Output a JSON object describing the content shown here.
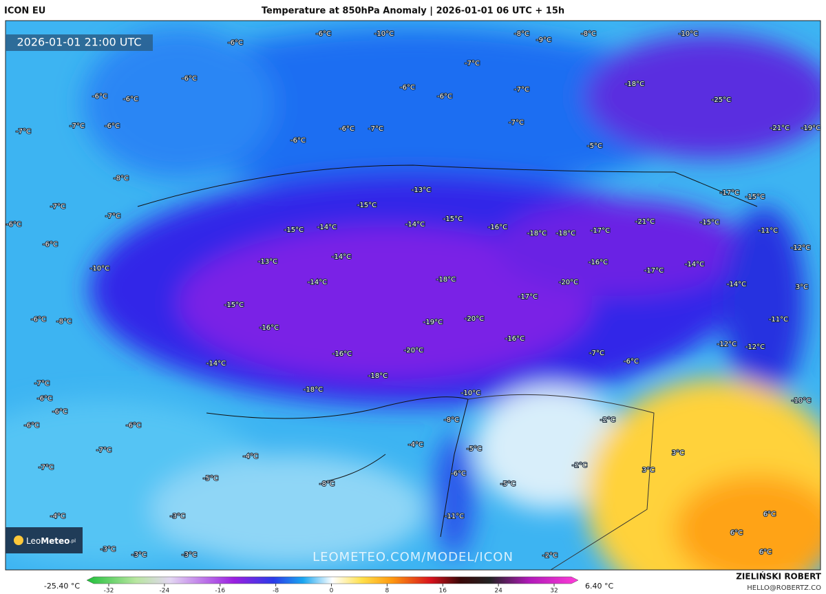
{
  "header": {
    "model": "ICON EU",
    "title": "Temperature at 850hPa Anomaly | 2026-01-01 06 UTC + 15h",
    "timestamp": "2026-01-01 21:00 UTC"
  },
  "map": {
    "labels": [
      "-6°C",
      "-10°C",
      "-6°C",
      "-8°C",
      "-9°C",
      "-8°C",
      "-10°C",
      "-7°C",
      "-6°C",
      "-6°C",
      "-6°C",
      "-7°C",
      "-18°C",
      "-25°C",
      "-6°C",
      "-6°C",
      "-7°C",
      "-6°C",
      "-6°C",
      "-7°C",
      "-7°C",
      "-21°C",
      "-19°C",
      "-7°C",
      "-6°C",
      "-5°C",
      "-8°C",
      "-13°C",
      "-17°C",
      "-15°C",
      "-15°C",
      "-7°C",
      "-7°C",
      "-15°C",
      "-14°C",
      "-16°C",
      "-21°C",
      "-15°C",
      "-6°C",
      "-15°C",
      "-14°C",
      "-18°C",
      "-18°C",
      "-17°C",
      "-11°C",
      "-6°C",
      "-12°C",
      "-13°C",
      "-14°C",
      "-16°C",
      "-17°C",
      "-14°C",
      "-10°C",
      "-14°C",
      "-18°C",
      "-20°C",
      "-14°C",
      "3°C",
      "-17°C",
      "-15°C",
      "-6°C",
      "-8°C",
      "-19°C",
      "-20°C",
      "-11°C",
      "-16°C",
      "-16°C",
      "-12°C",
      "-12°C",
      "-16°C",
      "-20°C",
      "-7°C",
      "-6°C",
      "-14°C",
      "-18°C",
      "-7°C",
      "-6°C",
      "-18°C",
      "-10°C",
      "-6°C",
      "-10°C",
      "-6°C",
      "-6°C",
      "-8°C",
      "-2°C",
      "-4°C",
      "-7°C",
      "-5°C",
      "3°C",
      "-4°C",
      "-2°C",
      "-7°C",
      "-6°C",
      "3°C",
      "-5°C",
      "-8°C",
      "-5°C",
      "-11°C",
      "-4°C",
      "-3°C",
      "6°C",
      "6°C",
      "-3°C",
      "-3°C",
      "-3°C",
      "-2°C",
      "6°C"
    ]
  },
  "watermark": "LEOMETEO.COM/MODEL/ICON",
  "logo": {
    "light": "Leo",
    "bold": "Meteo",
    "suffix": ".pl"
  },
  "credit": {
    "author": "ZIELIŃSKI ROBERT",
    "email": "HELLO@ROBERTZ.CO"
  },
  "colorbar": {
    "min_label": "-25.40 °C",
    "max_label": "6.40 °C",
    "ticks": [
      -32,
      -24,
      -16,
      -8,
      0,
      8,
      16,
      24,
      32
    ]
  }
}
